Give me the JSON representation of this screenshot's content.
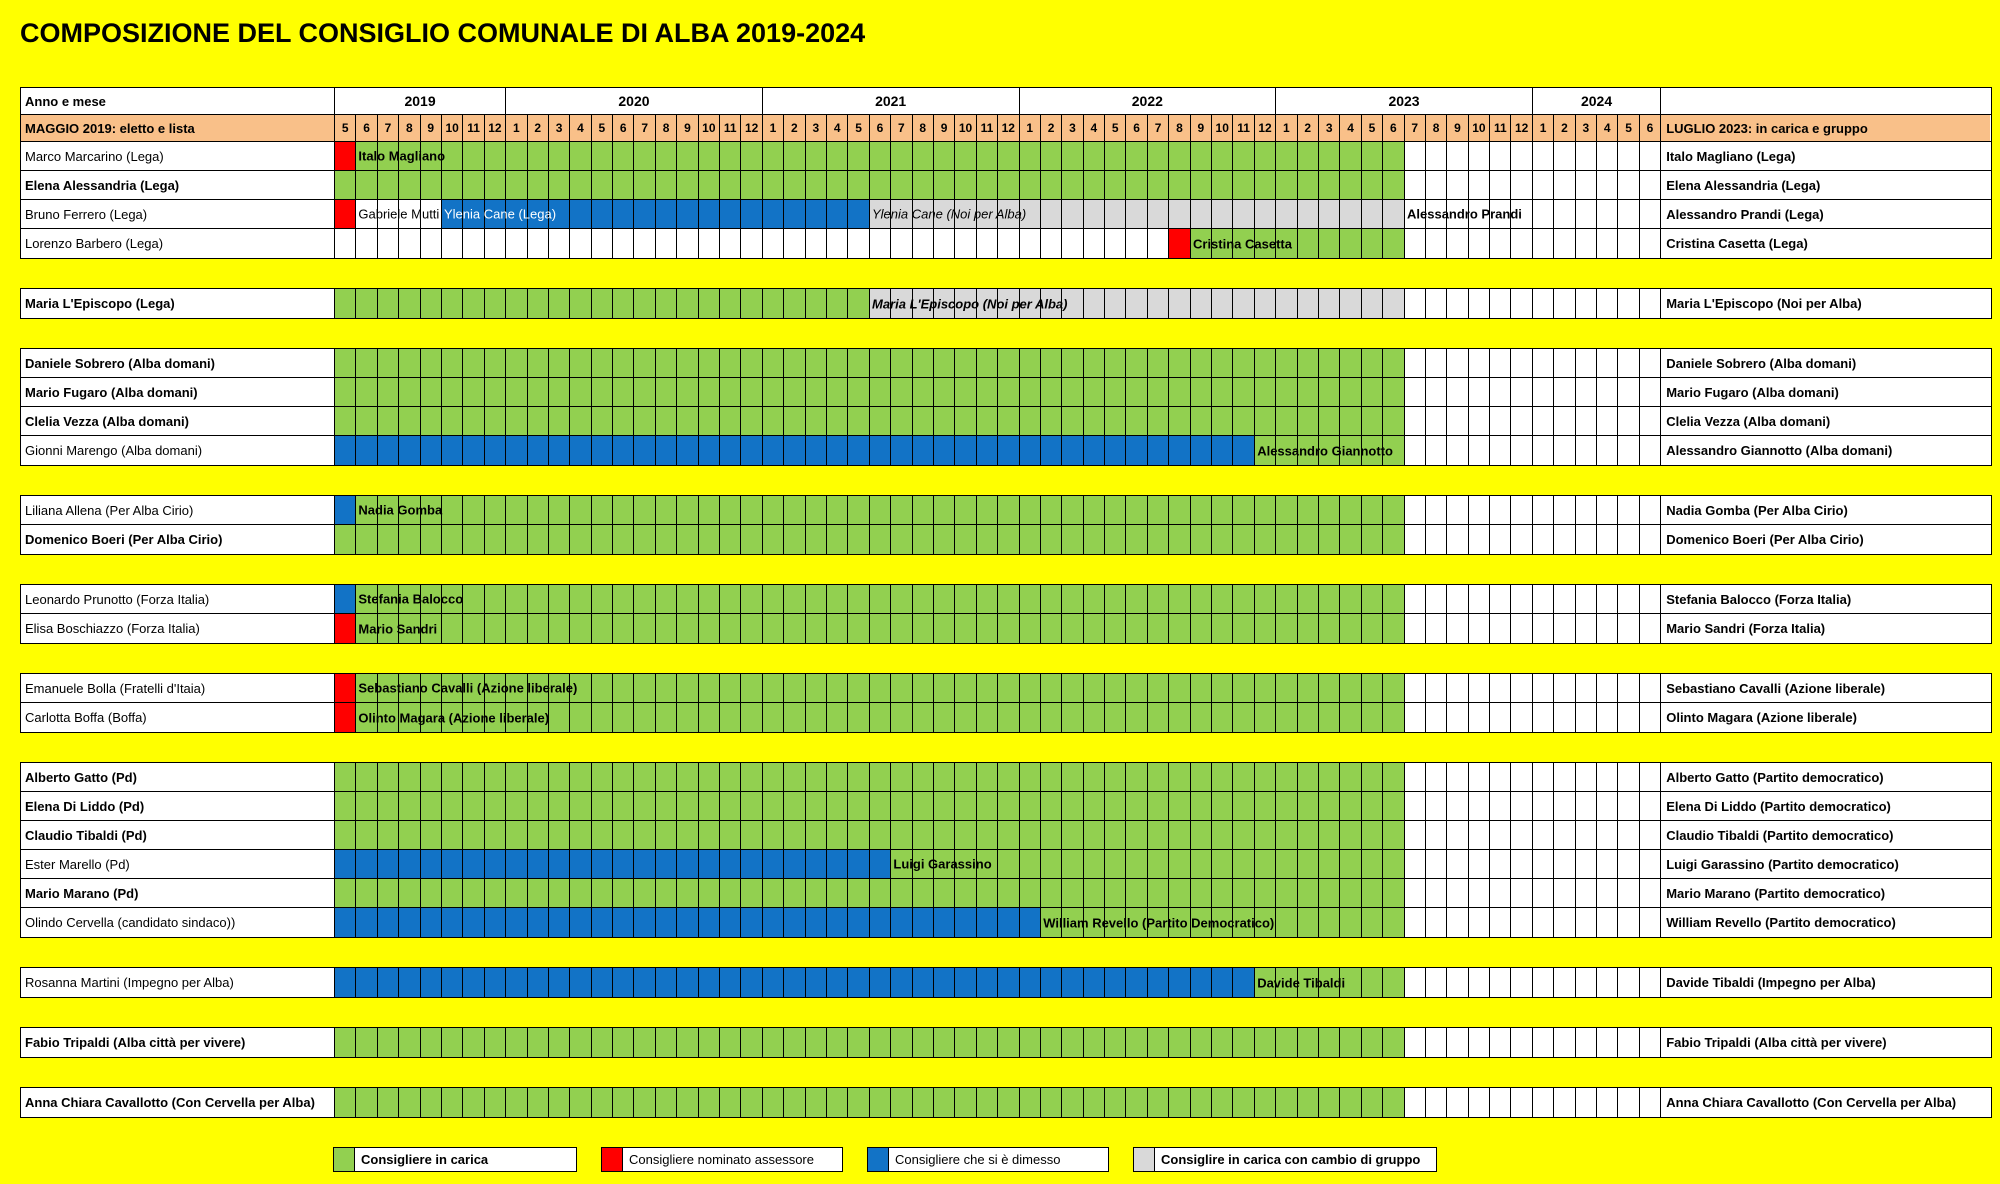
{
  "title": "COMPOSIZIONE DEL CONSIGLIO COMUNALE DI ALBA 2019-2024",
  "colors": {
    "in_carica": "#92D050",
    "assessore": "#FF0000",
    "dimesso": "#1273C6",
    "cambio_gruppo": "#D9D9D9",
    "header_band": "#F9C089",
    "page_bg": "#FFFF00",
    "grid": "#000000"
  },
  "header": {
    "year_month_label": "Anno e mese",
    "elected_label": "MAGGIO 2019: eletto e lista",
    "status_label": "LUGLIO 2023: in carica e gruppo",
    "years": [
      {
        "label": "2019",
        "months": [
          "5",
          "6",
          "7",
          "8",
          "9",
          "10",
          "11",
          "12"
        ]
      },
      {
        "label": "2020",
        "months": [
          "1",
          "2",
          "3",
          "4",
          "5",
          "6",
          "7",
          "8",
          "9",
          "10",
          "11",
          "12"
        ]
      },
      {
        "label": "2021",
        "months": [
          "1",
          "2",
          "3",
          "4",
          "5",
          "6",
          "7",
          "8",
          "9",
          "10",
          "11",
          "12"
        ]
      },
      {
        "label": "2022",
        "months": [
          "1",
          "2",
          "3",
          "4",
          "5",
          "6",
          "7",
          "8",
          "9",
          "10",
          "11",
          "12"
        ]
      },
      {
        "label": "2023",
        "months": [
          "1",
          "2",
          "3",
          "4",
          "5",
          "6",
          "7",
          "8",
          "9",
          "10",
          "11",
          "12"
        ]
      },
      {
        "label": "2024",
        "months": [
          "1",
          "2",
          "3",
          "4",
          "5",
          "6"
        ]
      }
    ]
  },
  "legend": [
    {
      "color": "in_carica",
      "label": "Consigliere in carica",
      "bold": true
    },
    {
      "color": "assessore",
      "label": "Consigliere nominato assessore",
      "bold": false
    },
    {
      "color": "dimesso",
      "label": "Consigliere che si è dimesso",
      "bold": false
    },
    {
      "color": "cambio_gruppo",
      "label": "Consiglire in carica con cambio di gruppo",
      "bold": true
    }
  ],
  "chart_data": {
    "type": "table",
    "timeline": {
      "start": "2019-05",
      "end": "2024-06"
    },
    "groups": [
      {
        "rows": [
          {
            "name": "Marco Marcarino (Lega)",
            "name_bold": false,
            "status": "Italo Magliano (Lega)",
            "segments": [
              {
                "from": "2019-05",
                "to": "2019-05",
                "color": "assessore"
              },
              {
                "from": "2019-06",
                "to": "2023-06",
                "color": "in_carica"
              }
            ],
            "labels": [
              {
                "text": "Italo Magliano",
                "at": "2019-06",
                "bold": true
              }
            ]
          },
          {
            "name": "Elena Alessandria (Lega)",
            "name_bold": true,
            "status": "Elena Alessandria (Lega)",
            "segments": [
              {
                "from": "2019-05",
                "to": "2023-06",
                "color": "in_carica"
              }
            ],
            "labels": []
          },
          {
            "name": "Bruno Ferrero (Lega)",
            "name_bold": false,
            "status": "Alessandro Prandi (Lega)",
            "segments": [
              {
                "from": "2019-05",
                "to": "2019-05",
                "color": "assessore"
              },
              {
                "from": "2019-10",
                "to": "2021-05",
                "color": "dimesso"
              },
              {
                "from": "2021-06",
                "to": "2023-06",
                "color": "cambio_gruppo"
              }
            ],
            "labels": [
              {
                "text": "Gabriele Mutti",
                "at": "2019-06"
              },
              {
                "text": "Ylenia Cane (Lega)",
                "at": "2019-10",
                "white": true
              },
              {
                "text": "Ylenia Cane (Noi per Alba)",
                "at": "2021-06",
                "italic": true
              },
              {
                "text": "Alessandro Prandi",
                "at": "2023-07",
                "bold": true
              }
            ]
          },
          {
            "name": "Lorenzo Barbero (Lega)",
            "name_bold": false,
            "status": "Cristina Casetta (Lega)",
            "segments": [
              {
                "from": "2022-08",
                "to": "2022-08",
                "color": "assessore"
              },
              {
                "from": "2022-09",
                "to": "2023-06",
                "color": "in_carica"
              }
            ],
            "labels": [
              {
                "text": "Cristina Casetta",
                "at": "2022-09",
                "bold": true
              }
            ]
          }
        ]
      },
      {
        "rows": [
          {
            "name": "Maria L'Episcopo (Lega)",
            "name_bold": true,
            "status": "Maria L'Episcopo (Noi per Alba)",
            "segments": [
              {
                "from": "2019-05",
                "to": "2021-05",
                "color": "in_carica"
              },
              {
                "from": "2021-06",
                "to": "2023-06",
                "color": "cambio_gruppo"
              }
            ],
            "labels": [
              {
                "text": "Maria L'Episcopo (Noi per Alba)",
                "at": "2021-06",
                "bold": true,
                "italic": true
              }
            ]
          }
        ]
      },
      {
        "rows": [
          {
            "name": "Daniele Sobrero (Alba domani)",
            "name_bold": true,
            "status": "Daniele Sobrero (Alba domani)",
            "segments": [
              {
                "from": "2019-05",
                "to": "2023-06",
                "color": "in_carica"
              }
            ],
            "labels": []
          },
          {
            "name": "Mario Fugaro (Alba domani)",
            "name_bold": true,
            "status": "Mario Fugaro (Alba domani)",
            "segments": [
              {
                "from": "2019-05",
                "to": "2023-06",
                "color": "in_carica"
              }
            ],
            "labels": []
          },
          {
            "name": "Clelia Vezza (Alba domani)",
            "name_bold": true,
            "status": "Clelia Vezza (Alba domani)",
            "segments": [
              {
                "from": "2019-05",
                "to": "2023-06",
                "color": "in_carica"
              }
            ],
            "labels": []
          },
          {
            "name": "Gionni Marengo (Alba domani)",
            "name_bold": false,
            "status": "Alessandro Giannotto (Alba domani)",
            "segments": [
              {
                "from": "2019-05",
                "to": "2022-11",
                "color": "dimesso"
              },
              {
                "from": "2022-12",
                "to": "2023-06",
                "color": "in_carica"
              }
            ],
            "labels": [
              {
                "text": "Alessandro Giannotto",
                "at": "2022-12",
                "bold": true
              }
            ]
          }
        ]
      },
      {
        "rows": [
          {
            "name": "Liliana Allena (Per Alba Cirio)",
            "name_bold": false,
            "status": "Nadia Gomba (Per Alba Cirio)",
            "segments": [
              {
                "from": "2019-05",
                "to": "2019-05",
                "color": "dimesso"
              },
              {
                "from": "2019-06",
                "to": "2023-06",
                "color": "in_carica"
              }
            ],
            "labels": [
              {
                "text": "Nadia Gomba",
                "at": "2019-06",
                "bold": true
              }
            ]
          },
          {
            "name": "Domenico Boeri (Per Alba Cirio)",
            "name_bold": true,
            "status": "Domenico Boeri (Per Alba Cirio)",
            "segments": [
              {
                "from": "2019-05",
                "to": "2023-06",
                "color": "in_carica"
              }
            ],
            "labels": []
          }
        ]
      },
      {
        "rows": [
          {
            "name": "Leonardo Prunotto (Forza Italia)",
            "name_bold": false,
            "status": "Stefania Balocco (Forza Italia)",
            "segments": [
              {
                "from": "2019-05",
                "to": "2019-05",
                "color": "dimesso"
              },
              {
                "from": "2019-06",
                "to": "2023-06",
                "color": "in_carica"
              }
            ],
            "labels": [
              {
                "text": "Stefania Balocco",
                "at": "2019-06",
                "bold": true
              }
            ]
          },
          {
            "name": "Elisa Boschiazzo (Forza Italia)",
            "name_bold": false,
            "status": "Mario Sandri (Forza Italia)",
            "segments": [
              {
                "from": "2019-05",
                "to": "2019-05",
                "color": "assessore"
              },
              {
                "from": "2019-06",
                "to": "2023-06",
                "color": "in_carica"
              }
            ],
            "labels": [
              {
                "text": "Mario Sandri",
                "at": "2019-06",
                "bold": true
              }
            ]
          }
        ]
      },
      {
        "rows": [
          {
            "name": "Emanuele Bolla (Fratelli d'Itaia)",
            "name_bold": false,
            "status": "Sebastiano Cavalli (Azione liberale)",
            "segments": [
              {
                "from": "2019-05",
                "to": "2019-05",
                "color": "assessore"
              },
              {
                "from": "2019-06",
                "to": "2023-06",
                "color": "in_carica"
              }
            ],
            "labels": [
              {
                "text": "Sebastiano Cavalli (Azione liberale)",
                "at": "2019-06",
                "bold": true
              }
            ]
          },
          {
            "name": "Carlotta Boffa (Boffa)",
            "name_bold": false,
            "status": "Olinto Magara (Azione liberale)",
            "segments": [
              {
                "from": "2019-05",
                "to": "2019-05",
                "color": "assessore"
              },
              {
                "from": "2019-06",
                "to": "2023-06",
                "color": "in_carica"
              }
            ],
            "labels": [
              {
                "text": "Olinto Magara (Azione liberale)",
                "at": "2019-06",
                "bold": true
              }
            ]
          }
        ]
      },
      {
        "rows": [
          {
            "name": "Alberto Gatto (Pd)",
            "name_bold": true,
            "status": "Alberto Gatto (Partito democratico)",
            "segments": [
              {
                "from": "2019-05",
                "to": "2023-06",
                "color": "in_carica"
              }
            ],
            "labels": []
          },
          {
            "name": "Elena Di Liddo (Pd)",
            "name_bold": true,
            "status": "Elena Di Liddo  (Partito democratico)",
            "segments": [
              {
                "from": "2019-05",
                "to": "2023-06",
                "color": "in_carica"
              }
            ],
            "labels": []
          },
          {
            "name": "Claudio Tibaldi (Pd)",
            "name_bold": true,
            "status": "Claudio Tibaldi  (Partito democratico)",
            "segments": [
              {
                "from": "2019-05",
                "to": "2023-06",
                "color": "in_carica"
              }
            ],
            "labels": []
          },
          {
            "name": "Ester Marello (Pd)",
            "name_bold": false,
            "status": "Luigi Garassino  (Partito democratico)",
            "segments": [
              {
                "from": "2019-05",
                "to": "2021-06",
                "color": "dimesso"
              },
              {
                "from": "2021-07",
                "to": "2023-06",
                "color": "in_carica"
              }
            ],
            "labels": [
              {
                "text": "Luigi Garassino",
                "at": "2021-07",
                "bold": true
              }
            ]
          },
          {
            "name": "Mario Marano (Pd)",
            "name_bold": true,
            "status": "Mario Marano  (Partito democratico)",
            "segments": [
              {
                "from": "2019-05",
                "to": "2023-06",
                "color": "in_carica"
              }
            ],
            "labels": []
          },
          {
            "name": "Olindo Cervella (candidato sindaco))",
            "name_bold": false,
            "status": "William Revello (Partito democratico)",
            "segments": [
              {
                "from": "2019-05",
                "to": "2022-01",
                "color": "dimesso"
              },
              {
                "from": "2022-02",
                "to": "2023-06",
                "color": "in_carica"
              }
            ],
            "labels": [
              {
                "text": "William Revello (Partito Democratico)",
                "at": "2022-02",
                "bold": true
              }
            ]
          }
        ]
      },
      {
        "rows": [
          {
            "name": "Rosanna Martini (Impegno per Alba)",
            "name_bold": false,
            "status": "Davide Tibaldi (Impegno per Alba)",
            "segments": [
              {
                "from": "2019-05",
                "to": "2022-11",
                "color": "dimesso"
              },
              {
                "from": "2022-12",
                "to": "2023-06",
                "color": "in_carica"
              }
            ],
            "labels": [
              {
                "text": "Davide Tibaldi",
                "at": "2022-12",
                "bold": true
              }
            ]
          }
        ]
      },
      {
        "rows": [
          {
            "name": "Fabio Tripaldi (Alba città per vivere)",
            "name_bold": true,
            "status": "Fabio Tripaldi (Alba città per vivere)",
            "segments": [
              {
                "from": "2019-05",
                "to": "2023-06",
                "color": "in_carica"
              }
            ],
            "labels": []
          }
        ]
      },
      {
        "rows": [
          {
            "name": "Anna Chiara Cavallotto (Con Cervella per Alba)",
            "name_bold": true,
            "status": "Anna Chiara Cavallotto (Con Cervella per Alba)",
            "segments": [
              {
                "from": "2019-05",
                "to": "2023-06",
                "color": "in_carica"
              }
            ],
            "labels": []
          }
        ]
      }
    ]
  }
}
